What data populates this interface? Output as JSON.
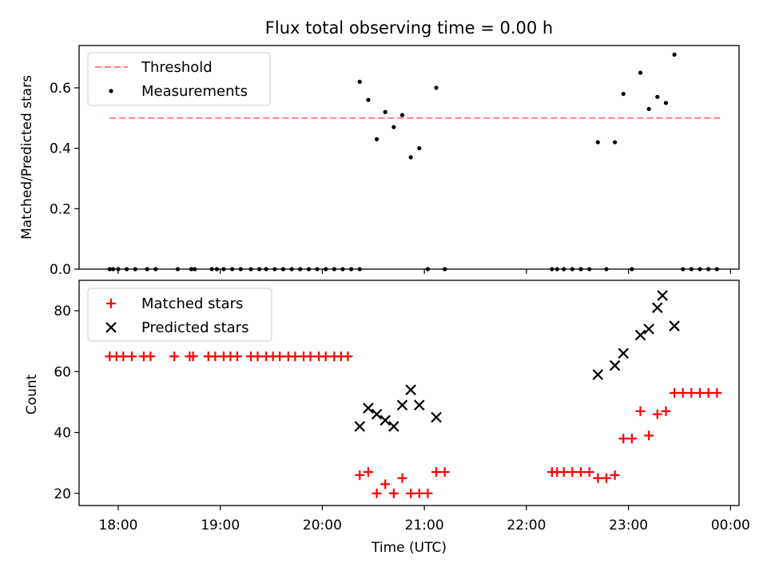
{
  "chart_data": [
    {
      "type": "scatter",
      "title": "Flux total observing time = 0.00 h",
      "xlabel": "",
      "ylabel": "Matched/Predicted stars",
      "xlim": [
        "17:37",
        "00:05"
      ],
      "ylim": [
        0,
        0.74
      ],
      "yticks": [
        0.0,
        0.2,
        0.4,
        0.6
      ],
      "yticklabels": [
        "0.0",
        "0.2",
        "0.4",
        "0.6"
      ],
      "grid": false,
      "legend_position": "upper-left",
      "threshold": {
        "name": "Threshold",
        "value": 0.5,
        "x_start": "17:55",
        "x_end": "23:54",
        "color": "#ff7f7f",
        "style": "dashed"
      },
      "series": [
        {
          "name": "Measurements",
          "color": "#000000",
          "marker": "dot",
          "points": [
            [
              "17:55",
              0
            ],
            [
              "17:57",
              0
            ],
            [
              "18:00",
              0
            ],
            [
              "18:05",
              0
            ],
            [
              "18:10",
              0
            ],
            [
              "18:17",
              0
            ],
            [
              "18:22",
              0
            ],
            [
              "18:35",
              0
            ],
            [
              "18:43",
              0
            ],
            [
              "18:45",
              0
            ],
            [
              "18:55",
              0
            ],
            [
              "18:58",
              0
            ],
            [
              "19:02",
              0
            ],
            [
              "19:07",
              0
            ],
            [
              "19:12",
              0
            ],
            [
              "19:18",
              0
            ],
            [
              "19:23",
              0
            ],
            [
              "19:27",
              0
            ],
            [
              "19:32",
              0
            ],
            [
              "19:37",
              0
            ],
            [
              "19:42",
              0
            ],
            [
              "19:47",
              0
            ],
            [
              "19:52",
              0
            ],
            [
              "19:57",
              0
            ],
            [
              "20:02",
              0
            ],
            [
              "20:07",
              0
            ],
            [
              "20:12",
              0
            ],
            [
              "20:17",
              0
            ],
            [
              "20:22",
              0
            ],
            [
              "20:22",
              0.62
            ],
            [
              "20:27",
              0.56
            ],
            [
              "20:32",
              0.43
            ],
            [
              "20:37",
              0.52
            ],
            [
              "20:42",
              0.47
            ],
            [
              "20:47",
              0.51
            ],
            [
              "20:52",
              0.37
            ],
            [
              "20:57",
              0.4
            ],
            [
              "21:02",
              0.0
            ],
            [
              "21:07",
              0.6
            ],
            [
              "21:12",
              0.0
            ],
            [
              "22:15",
              0.0
            ],
            [
              "22:18",
              0.0
            ],
            [
              "22:22",
              0.0
            ],
            [
              "22:27",
              0.0
            ],
            [
              "22:32",
              0.0
            ],
            [
              "22:37",
              0.0
            ],
            [
              "22:42",
              0.42
            ],
            [
              "22:47",
              0.0
            ],
            [
              "22:52",
              0.42
            ],
            [
              "22:57",
              0.58
            ],
            [
              "23:02",
              0.0
            ],
            [
              "23:07",
              0.65
            ],
            [
              "23:12",
              0.53
            ],
            [
              "23:17",
              0.57
            ],
            [
              "23:22",
              0.55
            ],
            [
              "23:27",
              0.71
            ],
            [
              "23:32",
              0
            ],
            [
              "23:37",
              0
            ],
            [
              "23:42",
              0
            ],
            [
              "23:47",
              0
            ],
            [
              "23:52",
              0
            ]
          ]
        }
      ]
    },
    {
      "type": "scatter",
      "title": "",
      "xlabel": "Time (UTC)",
      "ylabel": "Count",
      "xlim": [
        "17:37",
        "00:05"
      ],
      "ylim": [
        16,
        90
      ],
      "yticks": [
        20,
        40,
        60,
        80
      ],
      "yticklabels": [
        "20",
        "40",
        "60",
        "80"
      ],
      "xticks": [
        "18:00",
        "19:00",
        "20:00",
        "21:00",
        "22:00",
        "23:00",
        "00:00"
      ],
      "xticklabels": [
        "18:00",
        "19:00",
        "20:00",
        "21:00",
        "22:00",
        "23:00",
        "00:00"
      ],
      "grid": false,
      "legend_position": "upper-left",
      "series": [
        {
          "name": "Matched stars",
          "color": "#ff0000",
          "marker": "plus",
          "points": [
            [
              "17:55",
              65
            ],
            [
              "17:59",
              65
            ],
            [
              "18:03",
              65
            ],
            [
              "18:08",
              65
            ],
            [
              "18:15",
              65
            ],
            [
              "18:19",
              65
            ],
            [
              "18:33",
              65
            ],
            [
              "18:42",
              65
            ],
            [
              "18:44",
              65
            ],
            [
              "18:53",
              65
            ],
            [
              "18:57",
              65
            ],
            [
              "19:02",
              65
            ],
            [
              "19:06",
              65
            ],
            [
              "19:10",
              65
            ],
            [
              "19:18",
              65
            ],
            [
              "19:22",
              65
            ],
            [
              "19:27",
              65
            ],
            [
              "19:31",
              65
            ],
            [
              "19:35",
              65
            ],
            [
              "19:40",
              65
            ],
            [
              "19:44",
              65
            ],
            [
              "19:49",
              65
            ],
            [
              "19:53",
              65
            ],
            [
              "19:58",
              65
            ],
            [
              "20:02",
              65
            ],
            [
              "20:07",
              65
            ],
            [
              "20:11",
              65
            ],
            [
              "20:15",
              65
            ],
            [
              "20:22",
              26
            ],
            [
              "20:27",
              27
            ],
            [
              "20:32",
              20
            ],
            [
              "20:37",
              23
            ],
            [
              "20:42",
              20
            ],
            [
              "20:47",
              25
            ],
            [
              "20:52",
              20
            ],
            [
              "20:57",
              20
            ],
            [
              "21:02",
              20
            ],
            [
              "21:07",
              27
            ],
            [
              "21:12",
              27
            ],
            [
              "22:15",
              27
            ],
            [
              "22:18",
              27
            ],
            [
              "22:22",
              27
            ],
            [
              "22:27",
              27
            ],
            [
              "22:32",
              27
            ],
            [
              "22:37",
              27
            ],
            [
              "22:42",
              25
            ],
            [
              "22:47",
              25
            ],
            [
              "22:52",
              26
            ],
            [
              "22:57",
              38
            ],
            [
              "23:02",
              38
            ],
            [
              "23:07",
              47
            ],
            [
              "23:12",
              39
            ],
            [
              "23:17",
              46
            ],
            [
              "23:22",
              47
            ],
            [
              "23:27",
              53
            ],
            [
              "23:32",
              53
            ],
            [
              "23:37",
              53
            ],
            [
              "23:42",
              53
            ],
            [
              "23:47",
              53
            ],
            [
              "23:52",
              53
            ]
          ]
        },
        {
          "name": "Predicted stars",
          "color": "#000000",
          "marker": "x",
          "points": [
            [
              "20:22",
              42
            ],
            [
              "20:27",
              48
            ],
            [
              "20:32",
              46
            ],
            [
              "20:37",
              44
            ],
            [
              "20:42",
              42
            ],
            [
              "20:47",
              49
            ],
            [
              "20:52",
              54
            ],
            [
              "20:57",
              49
            ],
            [
              "21:07",
              45
            ],
            [
              "22:42",
              59
            ],
            [
              "22:52",
              62
            ],
            [
              "22:57",
              66
            ],
            [
              "23:07",
              72
            ],
            [
              "23:12",
              74
            ],
            [
              "23:17",
              81
            ],
            [
              "23:20",
              85
            ],
            [
              "23:27",
              75
            ]
          ]
        }
      ]
    }
  ]
}
